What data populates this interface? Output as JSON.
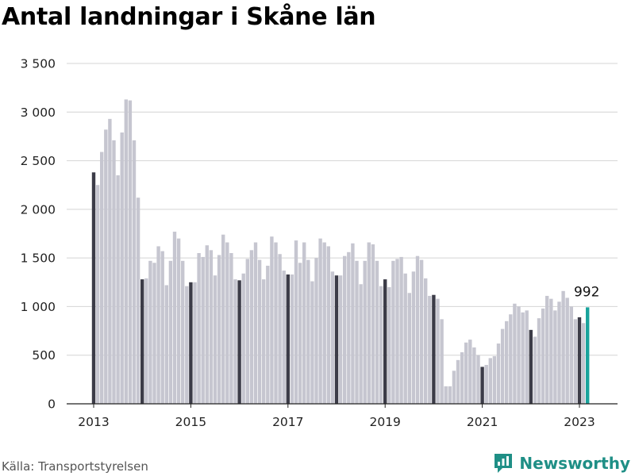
{
  "chart_data": {
    "type": "bar",
    "title": "Antal landningar i Skåne län",
    "xlabel": "",
    "ylabel": "",
    "ylim": [
      0,
      3500
    ],
    "y_ticks": [
      {
        "value": 0,
        "label": "0"
      },
      {
        "value": 500,
        "label": "500"
      },
      {
        "value": 1000,
        "label": "1 000"
      },
      {
        "value": 1500,
        "label": "1 500"
      },
      {
        "value": 2000,
        "label": "2 000"
      },
      {
        "value": 2500,
        "label": "2 500"
      },
      {
        "value": 3000,
        "label": "3 000"
      },
      {
        "value": 3500,
        "label": "3 500"
      }
    ],
    "x_ticks": [
      "2013",
      "2015",
      "2017",
      "2019",
      "2021",
      "2023"
    ],
    "grid": "horizontal",
    "period": "monthly",
    "start": "2013-01",
    "end": "2023-03",
    "values": [
      2380,
      2250,
      2590,
      2820,
      2930,
      2710,
      2350,
      2790,
      3130,
      3120,
      2710,
      2120,
      1280,
      1290,
      1470,
      1450,
      1620,
      1570,
      1220,
      1470,
      1770,
      1700,
      1470,
      1210,
      1250,
      1250,
      1550,
      1510,
      1630,
      1580,
      1320,
      1530,
      1740,
      1660,
      1550,
      1280,
      1270,
      1340,
      1490,
      1580,
      1660,
      1480,
      1280,
      1420,
      1720,
      1660,
      1540,
      1370,
      1330,
      1330,
      1680,
      1450,
      1660,
      1480,
      1260,
      1500,
      1700,
      1660,
      1620,
      1360,
      1320,
      1320,
      1520,
      1560,
      1650,
      1470,
      1230,
      1470,
      1660,
      1640,
      1470,
      1210,
      1280,
      1200,
      1470,
      1490,
      1510,
      1340,
      1140,
      1360,
      1520,
      1480,
      1290,
      1110,
      1120,
      1080,
      870,
      180,
      180,
      340,
      450,
      530,
      630,
      660,
      580,
      500,
      380,
      400,
      470,
      490,
      620,
      770,
      850,
      920,
      1030,
      1000,
      940,
      960,
      760,
      690,
      880,
      980,
      1110,
      1080,
      960,
      1050,
      1160,
      1090,
      1000,
      870,
      890,
      830,
      992
    ],
    "highlight": "January of each year (dark bars); latest month in teal",
    "last_value_label": "992",
    "colors": {
      "bar": "#c6c6d0",
      "january": "#3c3c48",
      "latest": "#1aa39c",
      "grid": "#d4d4d4",
      "axis": "#222222"
    }
  },
  "footer": {
    "source": "Källa: Transportstyrelsen",
    "brand": "Newsworthy",
    "brand_color": "#1f8f86",
    "brand_icon": "bar-chart-speech-bubble-icon"
  }
}
